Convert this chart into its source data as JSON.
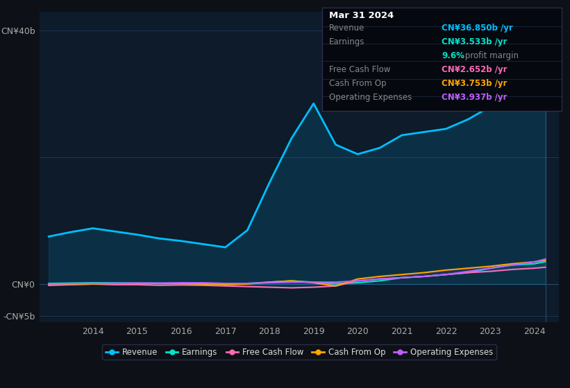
{
  "bg_color": "#0d1117",
  "chart_bg": "#0d1b2a",
  "years": [
    2013.0,
    2013.5,
    2014.0,
    2014.5,
    2015.0,
    2015.5,
    2016.0,
    2016.5,
    2017.0,
    2017.5,
    2018.0,
    2018.5,
    2019.0,
    2019.5,
    2020.0,
    2020.5,
    2021.0,
    2021.5,
    2022.0,
    2022.5,
    2023.0,
    2023.5,
    2024.0,
    2024.25
  ],
  "revenue": [
    7.5,
    8.2,
    8.8,
    8.3,
    7.8,
    7.2,
    6.8,
    6.3,
    5.8,
    8.5,
    16.0,
    23.0,
    28.5,
    22.0,
    20.5,
    21.5,
    23.5,
    24.0,
    24.5,
    26.0,
    28.0,
    33.0,
    36.0,
    36.85
  ],
  "earnings": [
    0.1,
    0.15,
    0.2,
    0.18,
    0.15,
    0.12,
    0.1,
    0.05,
    0.02,
    0.1,
    0.3,
    0.5,
    0.3,
    0.05,
    0.2,
    0.5,
    1.0,
    1.2,
    1.5,
    1.8,
    2.5,
    3.0,
    3.2,
    3.533
  ],
  "free_cash_flow": [
    -0.1,
    -0.05,
    0.0,
    -0.1,
    -0.1,
    -0.2,
    -0.15,
    -0.2,
    -0.3,
    -0.4,
    -0.5,
    -0.6,
    -0.5,
    -0.3,
    0.5,
    0.8,
    1.0,
    1.2,
    1.5,
    1.8,
    2.0,
    2.3,
    2.5,
    2.652
  ],
  "cash_from_op": [
    -0.2,
    -0.1,
    0.0,
    0.1,
    0.1,
    0.1,
    0.1,
    0.0,
    -0.1,
    0.0,
    0.3,
    0.5,
    0.2,
    -0.3,
    0.8,
    1.2,
    1.5,
    1.8,
    2.2,
    2.5,
    2.8,
    3.2,
    3.5,
    3.753
  ],
  "operating_expenses": [
    0.0,
    0.05,
    0.1,
    0.1,
    0.15,
    0.15,
    0.2,
    0.2,
    0.1,
    0.1,
    0.2,
    0.3,
    0.3,
    0.3,
    0.5,
    0.8,
    1.0,
    1.2,
    1.5,
    2.0,
    2.5,
    3.0,
    3.5,
    3.937
  ],
  "revenue_color": "#00bfff",
  "earnings_color": "#00e5cc",
  "free_cash_flow_color": "#ff69b4",
  "cash_from_op_color": "#ffa500",
  "operating_expenses_color": "#bf5fff",
  "ylim_min": -6,
  "ylim_max": 43,
  "yticks": [
    -5,
    0,
    40
  ],
  "ytick_labels": [
    "-CN¥5b",
    "CN¥0",
    "CN¥40b"
  ],
  "xlabel_years": [
    2014,
    2015,
    2016,
    2017,
    2018,
    2019,
    2020,
    2021,
    2022,
    2023,
    2024
  ],
  "legend_items": [
    "Revenue",
    "Earnings",
    "Free Cash Flow",
    "Cash From Op",
    "Operating Expenses"
  ],
  "tooltip": {
    "date": "Mar 31 2024",
    "revenue_label": "Revenue",
    "revenue_value": "CN¥36.850b /yr",
    "revenue_color": "#00bfff",
    "earnings_label": "Earnings",
    "earnings_value": "CN¥3.533b /yr",
    "earnings_color": "#00e5cc",
    "margin_text": "9.6%",
    "margin_label": " profit margin",
    "fcf_label": "Free Cash Flow",
    "fcf_value": "CN¥2.652b /yr",
    "fcf_color": "#ff69b4",
    "cfop_label": "Cash From Op",
    "cfop_value": "CN¥3.753b /yr",
    "cfop_color": "#ffa500",
    "opex_label": "Operating Expenses",
    "opex_value": "CN¥3.937b /yr",
    "opex_color": "#bf5fff"
  }
}
